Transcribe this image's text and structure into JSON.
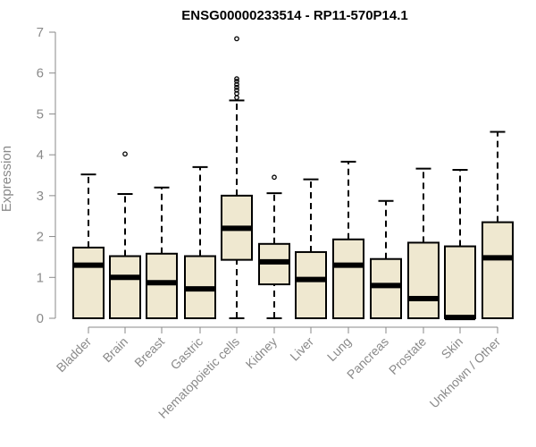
{
  "chart_data": {
    "type": "boxplot",
    "title": "ENSG00000233514 - RP11-570P14.1",
    "xlabel": "",
    "ylabel": "Expression",
    "ylim": [
      0,
      7
    ],
    "yticks": [
      0,
      1,
      2,
      3,
      4,
      5,
      6,
      7
    ],
    "box_color": "#efe8d0",
    "categories": [
      "Bladder",
      "Brain",
      "Breast",
      "Gastric",
      "Hematopoietic cells",
      "Kidney",
      "Liver",
      "Lung",
      "Pancreas",
      "Prostate",
      "Skin",
      "Unknown / Other"
    ],
    "boxes": [
      {
        "name": "Bladder",
        "whislo": 0,
        "q1": 0,
        "med": 1.3,
        "q3": 1.73,
        "whishi": 3.52,
        "outliers": []
      },
      {
        "name": "Brain",
        "whislo": 0,
        "q1": 0,
        "med": 1.0,
        "q3": 1.52,
        "whishi": 3.04,
        "outliers": [
          4.02
        ]
      },
      {
        "name": "Breast",
        "whislo": 0,
        "q1": 0,
        "med": 0.87,
        "q3": 1.58,
        "whishi": 3.2,
        "outliers": []
      },
      {
        "name": "Gastric",
        "whislo": 0,
        "q1": 0,
        "med": 0.72,
        "q3": 1.52,
        "whishi": 3.7,
        "outliers": []
      },
      {
        "name": "Hematopoietic cells",
        "whislo": 0,
        "q1": 1.43,
        "med": 2.2,
        "q3": 3.0,
        "whishi": 5.33,
        "outliers": [
          5.4,
          5.5,
          5.58,
          5.65,
          5.72,
          5.8,
          5.86,
          6.84
        ]
      },
      {
        "name": "Kidney",
        "whislo": 0,
        "q1": 0.83,
        "med": 1.38,
        "q3": 1.82,
        "whishi": 3.06,
        "outliers": [
          3.45
        ]
      },
      {
        "name": "Liver",
        "whislo": 0,
        "q1": 0,
        "med": 0.95,
        "q3": 1.62,
        "whishi": 3.4,
        "outliers": []
      },
      {
        "name": "Lung",
        "whislo": 0,
        "q1": 0,
        "med": 1.3,
        "q3": 1.93,
        "whishi": 3.83,
        "outliers": []
      },
      {
        "name": "Pancreas",
        "whislo": 0,
        "q1": 0,
        "med": 0.8,
        "q3": 1.45,
        "whishi": 2.87,
        "outliers": []
      },
      {
        "name": "Prostate",
        "whislo": 0,
        "q1": 0,
        "med": 0.48,
        "q3": 1.85,
        "whishi": 3.66,
        "outliers": []
      },
      {
        "name": "Skin",
        "whislo": 0,
        "q1": 0,
        "med": 0.02,
        "q3": 1.76,
        "whishi": 3.63,
        "outliers": []
      },
      {
        "name": "Unknown / Other",
        "whislo": 0,
        "q1": 0,
        "med": 1.48,
        "q3": 2.35,
        "whishi": 4.56,
        "outliers": []
      }
    ]
  }
}
